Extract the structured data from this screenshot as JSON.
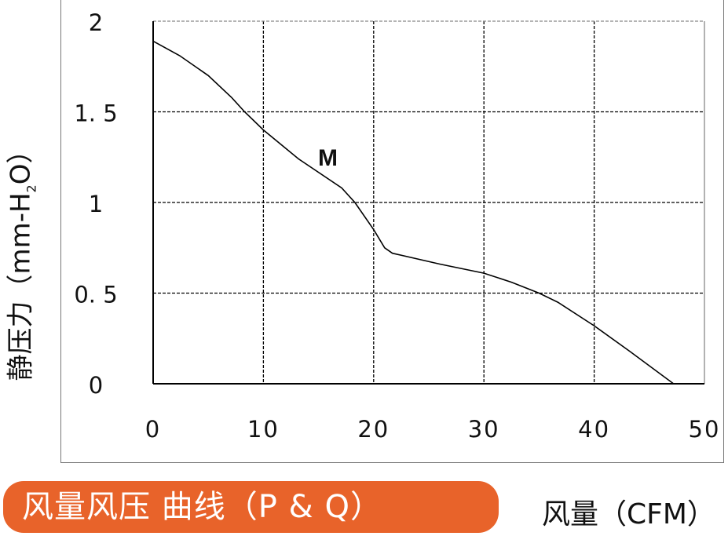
{
  "chart_data": {
    "type": "line",
    "title": "风量风压 曲线（P & Q）",
    "xlabel": "风量（CFM）",
    "ylabel": {
      "main": "静压力（mm-H",
      "sub": "2",
      "tail": "O）"
    },
    "xlim": [
      0,
      50
    ],
    "ylim": [
      0,
      2
    ],
    "x_ticks": [
      "0",
      "10",
      "20",
      "30",
      "40",
      "50"
    ],
    "y_ticks": [
      "0",
      "0. 5",
      "1",
      "1. 5",
      "2"
    ],
    "grid": true,
    "annotation": "M",
    "series": [
      {
        "x": [
          0,
          2.4,
          5,
          7.1,
          8.3,
          10,
          13.2,
          17.1,
          18.3,
          20,
          21,
          21.7,
          26,
          30,
          32.5,
          35,
          36.7,
          40,
          43.2,
          47.2
        ],
        "y": [
          1.89,
          1.81,
          1.7,
          1.58,
          1.5,
          1.4,
          1.24,
          1.08,
          1.0,
          0.85,
          0.75,
          0.72,
          0.66,
          0.61,
          0.56,
          0.5,
          0.45,
          0.32,
          0.18,
          0
        ]
      }
    ],
    "colors": {
      "line": "#000000",
      "grid": "#000000",
      "title_bg": "#e8632a",
      "title_text": "#ffffff"
    }
  }
}
